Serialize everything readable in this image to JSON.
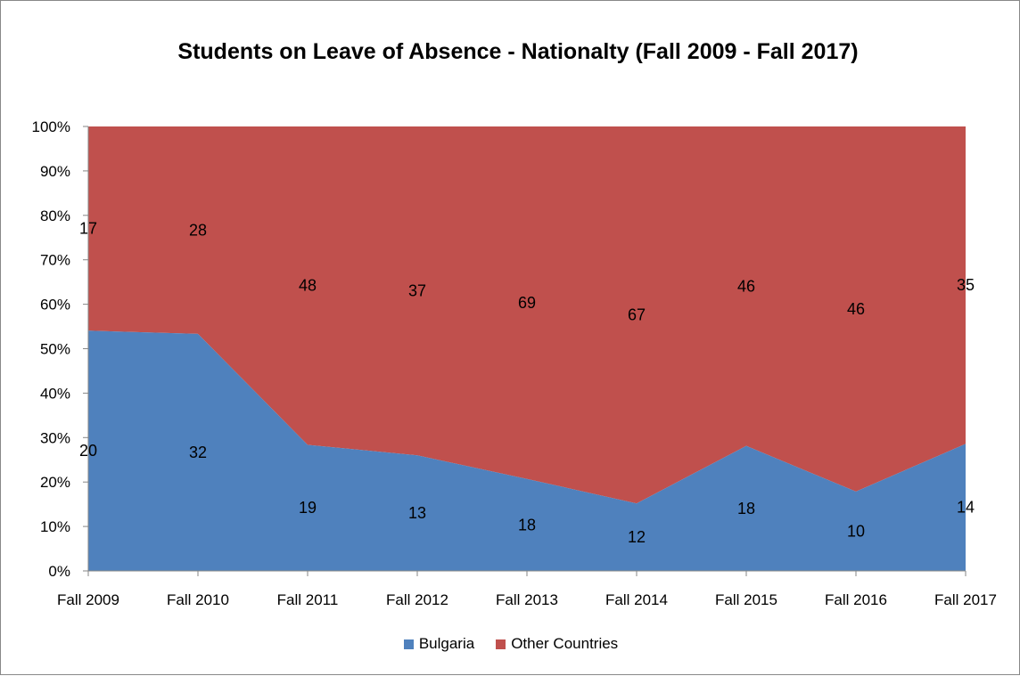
{
  "chart_data": {
    "type": "area",
    "stacked": "percent",
    "title": "Students on Leave of Absence - Nationalty (Fall 2009 - Fall 2017)",
    "xlabel": "",
    "ylabel": "",
    "categories": [
      "Fall 2009",
      "Fall 2010",
      "Fall 2011",
      "Fall 2012",
      "Fall 2013",
      "Fall 2014",
      "Fall 2015",
      "Fall 2016",
      "Fall 2017"
    ],
    "series": [
      {
        "name": "Bulgaria",
        "color": "#4F81BD",
        "values": [
          20,
          32,
          19,
          13,
          18,
          12,
          18,
          10,
          14
        ]
      },
      {
        "name": "Other Countries",
        "color": "#C0504D",
        "values": [
          17,
          28,
          48,
          37,
          69,
          67,
          46,
          46,
          35
        ]
      }
    ],
    "ylim": [
      0,
      100
    ],
    "yticks": [
      "0%",
      "10%",
      "20%",
      "30%",
      "40%",
      "50%",
      "60%",
      "70%",
      "80%",
      "90%",
      "100%"
    ],
    "grid": false,
    "legend_position": "bottom"
  }
}
